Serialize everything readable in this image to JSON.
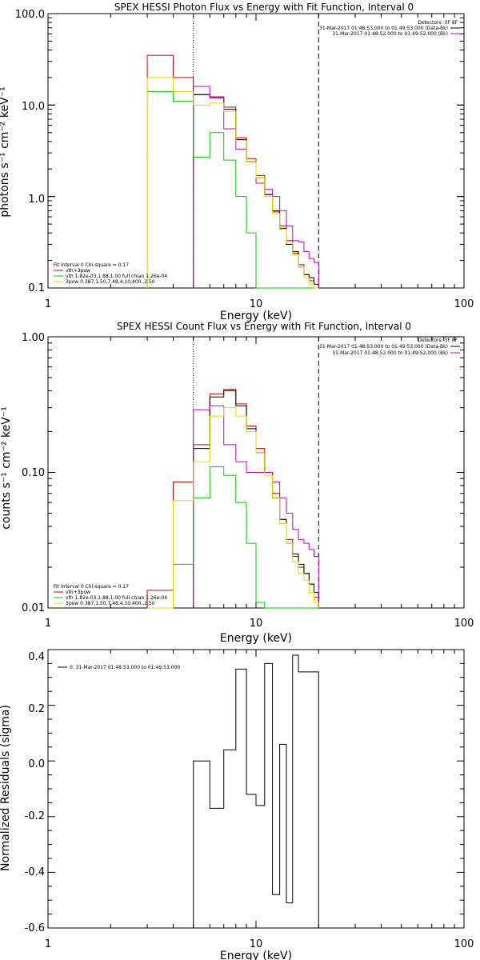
{
  "chart_data": [
    {
      "type": "line",
      "title": "SPEX HESSI Photon Flux vs Energy with Fit Function, Interval 0",
      "xlabel": "Energy (keV)",
      "ylabel": "photons s⁻¹ cm⁻² keV⁻¹",
      "xscale": "log",
      "yscale": "log",
      "xlim": [
        1,
        100
      ],
      "ylim": [
        0.1,
        100
      ],
      "x_ticks": [
        "1",
        "10",
        "100"
      ],
      "y_ticks": [
        "0.1",
        "1.0",
        "10.0",
        "100.0"
      ],
      "vlines": [
        {
          "x": 5,
          "style": "dotted"
        },
        {
          "x": 20,
          "style": "dashed"
        }
      ],
      "legend_top": {
        "header": "Detectors: 3F 8F",
        "entries": [
          {
            "label": "31-Mar-2017 01:48:53.000 to 01:49:53.000 (Data-Bk)",
            "color": "#000000"
          },
          {
            "label": "31-Mar-2017 01:48:52.000 to 01:49:52.000 (Bk)",
            "color": "#cc00cc"
          }
        ]
      },
      "legend_bottom": {
        "header": "Fit Interval 0   Chi-square = 0.17",
        "entries": [
          {
            "label": "vth+3pow",
            "color": "#cc0000"
          },
          {
            "label": "vth 1.82e-03,1.88,1.00  full chian 1.26e-04",
            "color": "#00cc00"
          },
          {
            "label": "3pow 0.387,1.50,7.48,4.10,400.,2.50",
            "color": "#dddd00"
          }
        ]
      },
      "series": [
        {
          "name": "vth+3pow",
          "color": "#cc0000",
          "edges": [
            3,
            4,
            5,
            6,
            7,
            8,
            9,
            10,
            11,
            12,
            13,
            14,
            15,
            16,
            17,
            18,
            19,
            20
          ],
          "values": [
            35,
            20,
            13,
            12.3,
            9.5,
            4.4,
            2.6,
            1.7,
            1.05,
            0.68,
            0.48,
            0.33,
            0.24,
            0.18,
            0.14,
            0.12,
            0.1
          ]
        },
        {
          "name": "Data-Bk",
          "color": "#000000",
          "edges": [
            5,
            6,
            7,
            8,
            9,
            10,
            11,
            12,
            13,
            14,
            15,
            16,
            17,
            18,
            19,
            20
          ],
          "values": [
            13,
            12,
            9,
            4.2,
            2.4,
            1.6,
            1.05,
            0.7,
            0.45,
            0.3,
            0.25,
            0.17,
            0.14,
            0.13,
            0.11
          ]
        },
        {
          "name": "Bk",
          "color": "#cc00cc",
          "edges": [
            5,
            6,
            7,
            8,
            9,
            10,
            11,
            12,
            13,
            14,
            15,
            16,
            17,
            18,
            19,
            20
          ],
          "values": [
            16,
            12,
            5.5,
            3.3,
            2.4,
            1.4,
            1.2,
            1.0,
            0.7,
            0.48,
            0.33,
            0.32,
            0.25,
            0.21,
            0.19
          ]
        },
        {
          "name": "vth",
          "color": "#00cc00",
          "edges": [
            3,
            4,
            5,
            6,
            7,
            8,
            9,
            10,
            11,
            12,
            13,
            14,
            15,
            16,
            17,
            18,
            19,
            20
          ],
          "values": [
            14,
            11,
            2.7,
            5,
            2.5,
            1.0,
            0.4,
            0.1,
            0.1,
            0.1,
            0.1,
            0.1,
            0.1,
            0.1,
            0.1,
            0.1,
            0.1
          ]
        },
        {
          "name": "3pow",
          "color": "#dddd00",
          "edges": [
            3,
            4,
            5,
            6,
            7,
            8,
            9,
            10,
            11,
            12,
            13,
            14,
            15,
            16,
            17,
            18,
            19,
            20
          ],
          "values": [
            20,
            14,
            10,
            10.5,
            8.5,
            4.1,
            2.4,
            1.6,
            1.0,
            0.65,
            0.44,
            0.31,
            0.23,
            0.17,
            0.13,
            0.11,
            0.1
          ]
        }
      ]
    },
    {
      "type": "line",
      "title": "SPEX HESSI Count Flux vs Energy with Fit Function, Interval 0",
      "xlabel": "Energy (keV)",
      "ylabel": "counts s⁻¹ cm⁻² keV⁻¹",
      "xscale": "log",
      "yscale": "log",
      "xlim": [
        1,
        100
      ],
      "ylim": [
        0.01,
        1
      ],
      "x_ticks": [
        "1",
        "10",
        "100"
      ],
      "y_ticks": [
        "0.01",
        "0.10",
        "1.00"
      ],
      "vlines": [
        {
          "x": 5,
          "style": "dotted"
        },
        {
          "x": 20,
          "style": "dashed"
        }
      ],
      "legend_top": {
        "header": "Detectors: 3F 8F",
        "entries": [
          {
            "label": "31-Mar-2017 01:48:53.000 to 01:49:53.000 (Data-Bk)",
            "color": "#000000"
          },
          {
            "label": "31-Mar-2017 01:48:52.000 to 01:49:52.000 (Bk)",
            "color": "#cc00cc"
          }
        ]
      },
      "legend_bottom": {
        "header": "Fit Interval 0   Chi-square = 0.17",
        "entries": [
          {
            "label": "vth+3pow",
            "color": "#cc0000"
          },
          {
            "label": "vth 1.82e-03,1.88,1.00  full chian 1.26e-04",
            "color": "#00cc00"
          },
          {
            "label": "3pow 0.387,1.50,7.48,4.10,400.,2.50",
            "color": "#dddd00"
          }
        ]
      },
      "series": [
        {
          "name": "vth+3pow",
          "color": "#cc0000",
          "edges": [
            3,
            4,
            5,
            6,
            7,
            8,
            9,
            10,
            11,
            12,
            13,
            14,
            15,
            16,
            17,
            18,
            19,
            20
          ],
          "values": [
            0.0135,
            0.085,
            0.16,
            0.38,
            0.41,
            0.32,
            0.22,
            0.15,
            0.1,
            0.07,
            0.045,
            0.032,
            0.024,
            0.02,
            0.018,
            0.015,
            0.012
          ]
        },
        {
          "name": "Data-Bk",
          "color": "#000000",
          "edges": [
            5,
            6,
            7,
            8,
            9,
            10,
            11,
            12,
            13,
            14,
            15,
            16,
            17,
            18,
            19,
            20
          ],
          "values": [
            0.15,
            0.36,
            0.4,
            0.31,
            0.21,
            0.14,
            0.1,
            0.065,
            0.045,
            0.03,
            0.025,
            0.021,
            0.018,
            0.015,
            0.013
          ]
        },
        {
          "name": "Bk",
          "color": "#cc00cc",
          "edges": [
            5,
            6,
            7,
            8,
            9,
            10,
            11,
            12,
            13,
            14,
            15,
            16,
            17,
            18,
            19,
            20
          ],
          "values": [
            0.29,
            0.31,
            0.16,
            0.12,
            0.1,
            0.1,
            0.1,
            0.085,
            0.065,
            0.05,
            0.038,
            0.032,
            0.03,
            0.027,
            0.024
          ]
        },
        {
          "name": "vth",
          "color": "#00cc00",
          "edges": [
            3,
            4,
            5,
            6,
            7,
            8,
            9,
            10,
            11,
            12,
            13,
            14,
            15,
            16,
            17,
            18,
            19,
            20
          ],
          "values": [
            0.01,
            0.021,
            0.065,
            0.11,
            0.095,
            0.06,
            0.03,
            0.011,
            0.01,
            0.01,
            0.01,
            0.01,
            0.01,
            0.01,
            0.01,
            0.01,
            0.01
          ]
        },
        {
          "name": "3pow",
          "color": "#dddd00",
          "edges": [
            3,
            4,
            5,
            6,
            7,
            8,
            9,
            10,
            11,
            12,
            13,
            14,
            15,
            16,
            17,
            18,
            19,
            20
          ],
          "values": [
            0.01,
            0.062,
            0.12,
            0.26,
            0.3,
            0.26,
            0.2,
            0.14,
            0.095,
            0.065,
            0.042,
            0.03,
            0.022,
            0.018,
            0.016,
            0.013,
            0.011
          ]
        }
      ]
    },
    {
      "type": "line",
      "title": "",
      "xlabel": "Energy (keV)",
      "ylabel": "Normalized Residuals (sigma)",
      "xscale": "log",
      "yscale": "linear",
      "xlim": [
        1,
        100
      ],
      "ylim": [
        -0.6,
        0.4
      ],
      "x_ticks": [
        "1",
        "10",
        "100"
      ],
      "y_ticks": [
        "-0.6",
        "-0.4",
        "-0.2",
        "0.0",
        "0.2",
        "0.4"
      ],
      "legend": {
        "entries": [
          {
            "label": "0. 31-Mar-2017 01:48:53.000 to 01:49:53.000",
            "color": "#000000"
          }
        ]
      },
      "series": [
        {
          "name": "0. 31-Mar-2017 01:48:53.000 to 01:49:53.000",
          "color": "#000000",
          "edges": [
            5,
            6,
            7,
            8,
            9,
            10,
            11,
            12,
            13,
            14,
            15,
            16,
            17,
            18,
            19,
            20
          ],
          "values": [
            0.0,
            -0.17,
            0.04,
            0.33,
            -0.12,
            -0.16,
            0.35,
            -0.48,
            0.06,
            -0.51,
            0.38,
            0.32,
            0.32,
            0.32,
            0.32
          ]
        }
      ]
    }
  ]
}
